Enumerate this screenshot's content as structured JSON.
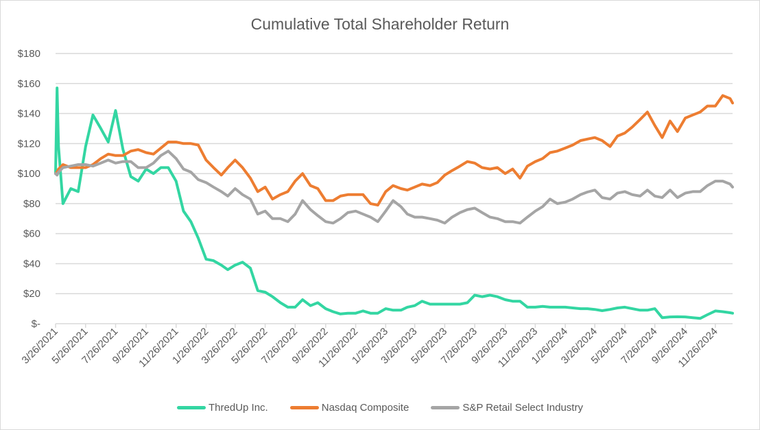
{
  "chart_data": {
    "type": "line",
    "title": "Cumulative Total Shareholder Return",
    "xlabel": "",
    "ylabel": "",
    "ylim": [
      0,
      180
    ],
    "xlim": [
      "2021-03-26",
      "2024-12-31"
    ],
    "grid": true,
    "legend_position": "bottom",
    "y_ticks": [
      "$-",
      "$20",
      "$40",
      "$60",
      "$80",
      "$100",
      "$120",
      "$140",
      "$160",
      "$180"
    ],
    "x_ticks": [
      "3/26/2021",
      "5/26/2021",
      "7/26/2021",
      "9/26/2021",
      "11/26/2021",
      "1/26/2022",
      "3/26/2022",
      "5/26/2022",
      "7/26/2022",
      "9/26/2022",
      "11/26/2022",
      "1/26/2023",
      "3/26/2023",
      "5/26/2023",
      "7/26/2023",
      "9/26/2023",
      "11/26/2023",
      "1/26/2024",
      "3/26/2024",
      "5/26/2024",
      "7/26/2024",
      "9/26/2024",
      "11/26/2024"
    ],
    "x": [
      "2021-03-26",
      "2021-03-29",
      "2021-04-01",
      "2021-04-10",
      "2021-04-26",
      "2021-05-11",
      "2021-05-26",
      "2021-06-10",
      "2021-06-26",
      "2021-07-11",
      "2021-07-26",
      "2021-08-10",
      "2021-08-26",
      "2021-09-10",
      "2021-09-26",
      "2021-10-11",
      "2021-10-26",
      "2021-11-10",
      "2021-11-26",
      "2021-12-11",
      "2021-12-26",
      "2022-01-10",
      "2022-01-26",
      "2022-02-10",
      "2022-02-26",
      "2022-03-11",
      "2022-03-26",
      "2022-04-10",
      "2022-04-26",
      "2022-05-11",
      "2022-05-26",
      "2022-06-10",
      "2022-06-26",
      "2022-07-11",
      "2022-07-26",
      "2022-08-10",
      "2022-08-26",
      "2022-09-10",
      "2022-09-26",
      "2022-10-11",
      "2022-10-26",
      "2022-11-10",
      "2022-11-26",
      "2022-12-11",
      "2022-12-26",
      "2023-01-10",
      "2023-01-26",
      "2023-02-10",
      "2023-02-26",
      "2023-03-11",
      "2023-03-26",
      "2023-04-10",
      "2023-04-26",
      "2023-05-11",
      "2023-05-26",
      "2023-06-10",
      "2023-06-26",
      "2023-07-11",
      "2023-07-26",
      "2023-08-10",
      "2023-08-26",
      "2023-09-10",
      "2023-09-26",
      "2023-10-11",
      "2023-10-26",
      "2023-11-10",
      "2023-11-26",
      "2023-12-11",
      "2023-12-26",
      "2024-01-10",
      "2024-01-26",
      "2024-02-10",
      "2024-02-26",
      "2024-03-11",
      "2024-03-26",
      "2024-04-10",
      "2024-04-26",
      "2024-05-11",
      "2024-05-26",
      "2024-06-10",
      "2024-06-26",
      "2024-07-11",
      "2024-07-26",
      "2024-08-10",
      "2024-08-26",
      "2024-09-10",
      "2024-09-26",
      "2024-10-11",
      "2024-10-26",
      "2024-11-10",
      "2024-11-26",
      "2024-12-11",
      "2024-12-26",
      "2024-12-31"
    ],
    "series": [
      {
        "name": "ThredUp Inc.",
        "color": "#33D6A2",
        "values": [
          100,
          157,
          118,
          80,
          90,
          88,
          118,
          139,
          130,
          121,
          142,
          116,
          98,
          95,
          103,
          100,
          104,
          104,
          95,
          75,
          68,
          57,
          43,
          42,
          39,
          36,
          39,
          41,
          37,
          22,
          21,
          18,
          14,
          11,
          11,
          16,
          12,
          14,
          10,
          8,
          6.5,
          7,
          7,
          8.5,
          7,
          7,
          10,
          9,
          9,
          11,
          12,
          15,
          13,
          13,
          13,
          13,
          13,
          14,
          19,
          18,
          19,
          18,
          16,
          15,
          15,
          11,
          11,
          11.5,
          11,
          11,
          11,
          10.5,
          10,
          10,
          9.5,
          8.7,
          9.5,
          10.5,
          11,
          10,
          9,
          9,
          10,
          4,
          4.5,
          4.6,
          4.5,
          4,
          3.5,
          6,
          8.5,
          8,
          7.3,
          7
        ]
      },
      {
        "name": "Nasdaq Composite",
        "color": "#ED7D31",
        "values": [
          100,
          101,
          103,
          106,
          104,
          104,
          104,
          106,
          110,
          113,
          112,
          112,
          115,
          116,
          114,
          113,
          117,
          121,
          121,
          120,
          120,
          119,
          109,
          104,
          99,
          104,
          109,
          104,
          97,
          88,
          91,
          83,
          86,
          88,
          95,
          100,
          92,
          90,
          82,
          82,
          85,
          86,
          86,
          86,
          80,
          79,
          88,
          92,
          90,
          89,
          91,
          93,
          92,
          94,
          99,
          102,
          105,
          108,
          107,
          104,
          103,
          104,
          100,
          103,
          97,
          105,
          108,
          110,
          114,
          115,
          117,
          119,
          122,
          123,
          124,
          122,
          118,
          125,
          127,
          131,
          136,
          141,
          132,
          124,
          135,
          128,
          137,
          139,
          141,
          145,
          145,
          152,
          150,
          147
        ]
      },
      {
        "name": "S&P Retail Select Industry",
        "color": "#A5A5A5",
        "values": [
          100,
          99,
          101,
          104,
          105,
          106,
          106,
          105,
          107,
          109,
          107,
          108,
          108,
          104,
          104,
          107,
          112,
          115,
          110,
          103,
          101,
          96,
          94,
          91,
          88,
          85,
          90,
          86,
          83,
          73,
          75,
          70,
          70,
          68,
          73,
          82,
          76,
          72,
          68,
          67,
          70,
          74,
          75,
          73,
          71,
          68,
          75,
          82,
          78,
          73,
          71,
          71,
          70,
          69,
          67,
          71,
          74,
          76,
          77,
          74,
          71,
          70,
          68,
          68,
          67,
          71,
          75,
          78,
          83,
          80,
          81,
          83,
          86,
          87.7,
          89,
          84,
          83,
          87,
          88,
          86,
          85,
          89,
          85,
          84,
          89,
          84,
          87,
          88,
          88,
          92,
          95,
          95,
          93,
          91
        ]
      }
    ]
  }
}
